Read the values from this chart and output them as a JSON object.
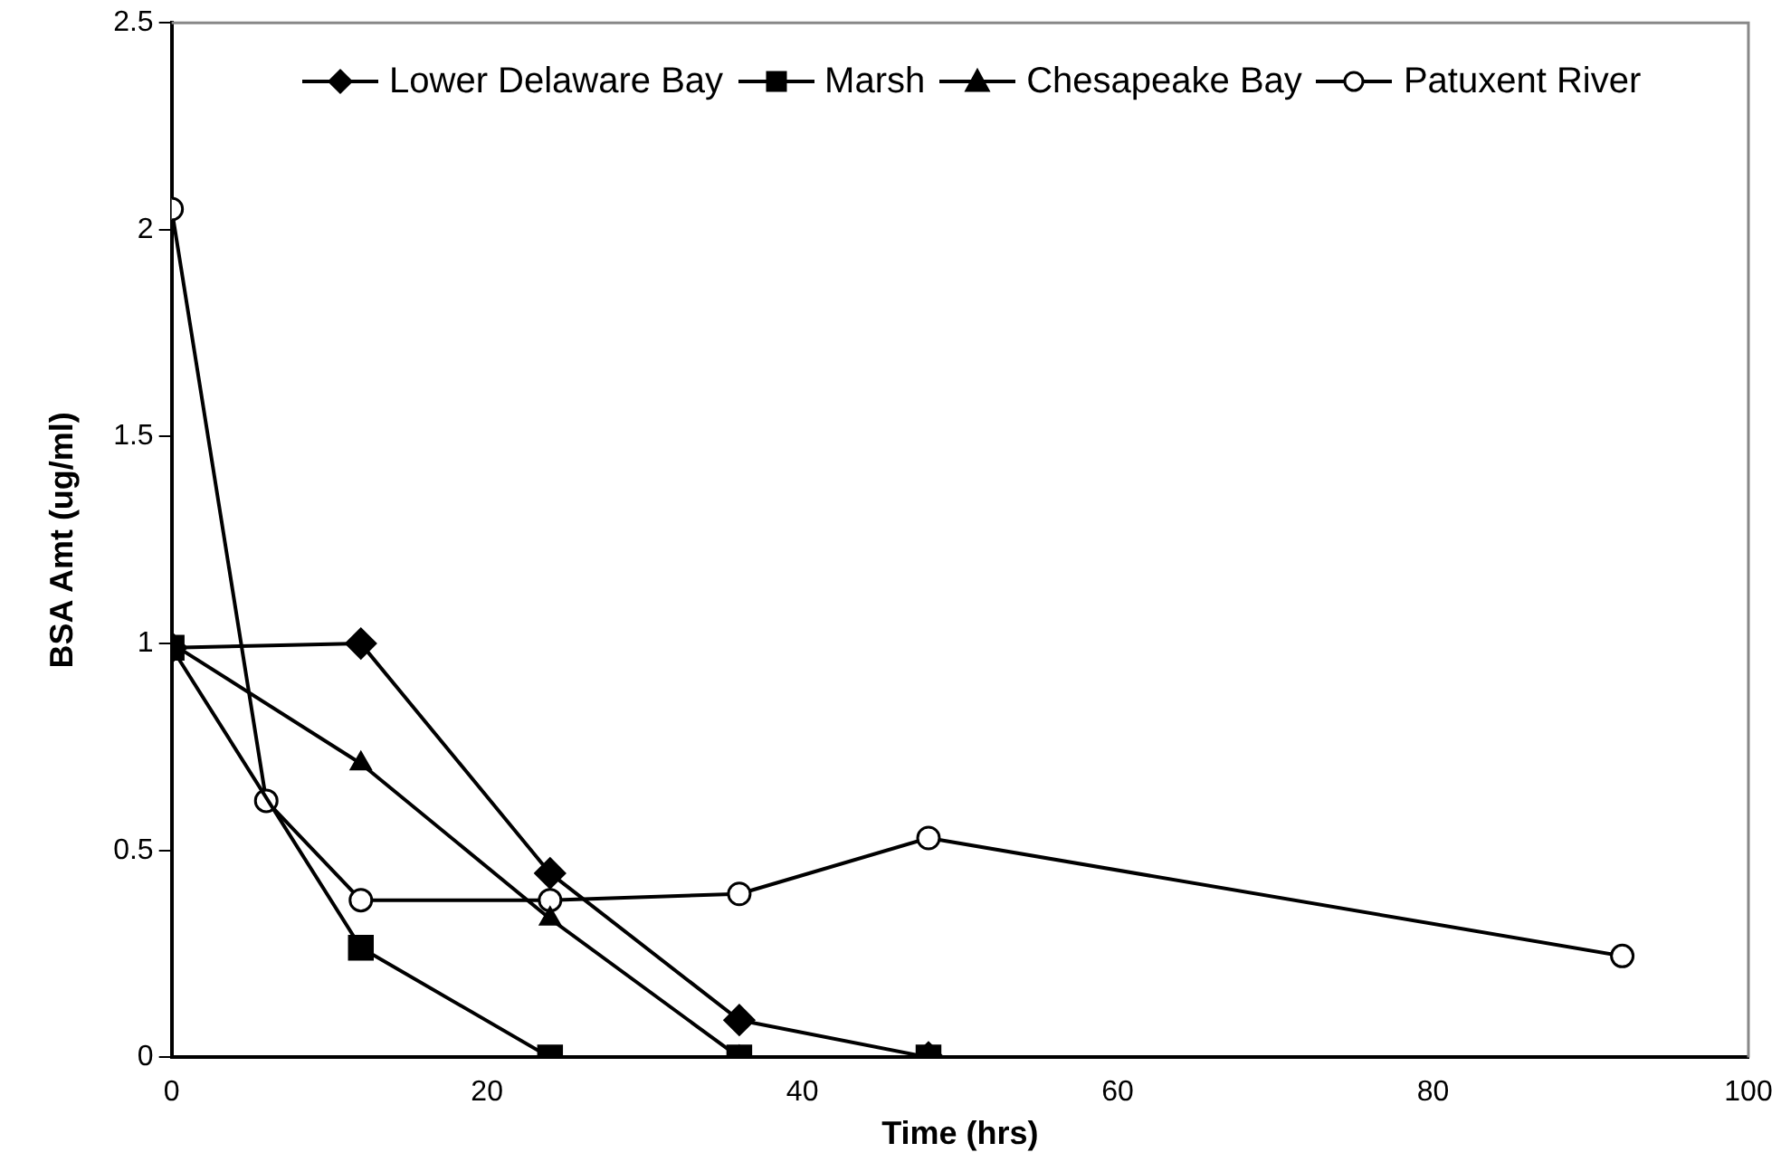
{
  "chart_data": {
    "type": "line",
    "xlabel": "Time (hrs)",
    "ylabel": "BSA Amt (ug/ml)",
    "xlim": [
      0,
      100
    ],
    "xticks": [
      0,
      20,
      40,
      60,
      80,
      100
    ],
    "ylim": [
      0,
      2.5
    ],
    "yticks": [
      0,
      0.5,
      1,
      1.5,
      2,
      2.5
    ],
    "grid": false,
    "legend": "top",
    "line_style": "solid",
    "series": [
      {
        "name": "Lower Delaware Bay",
        "color": "#000000",
        "marker": "diamond",
        "x": [
          0,
          12,
          24,
          36,
          48
        ],
        "values": [
          0.99,
          1.0,
          0.445,
          0.09,
          0
        ]
      },
      {
        "name": "Marsh",
        "color": "#000000",
        "marker": "square",
        "x": [
          0,
          12,
          24,
          36,
          48
        ],
        "values": [
          0.99,
          0.265,
          0,
          0,
          0
        ]
      },
      {
        "name": "Chesapeake Bay",
        "color": "#000000",
        "marker": "triangle",
        "x": [
          0,
          12,
          24,
          36,
          48
        ],
        "values": [
          1.0,
          0.71,
          0.335,
          0,
          0
        ]
      },
      {
        "name": "Patuxent River",
        "color": "#000000",
        "marker": "circle",
        "x": [
          0,
          6,
          12,
          24,
          36,
          48,
          92
        ],
        "values": [
          2.05,
          0.62,
          0.38,
          0.38,
          0.395,
          0.53,
          0.245
        ]
      }
    ]
  }
}
